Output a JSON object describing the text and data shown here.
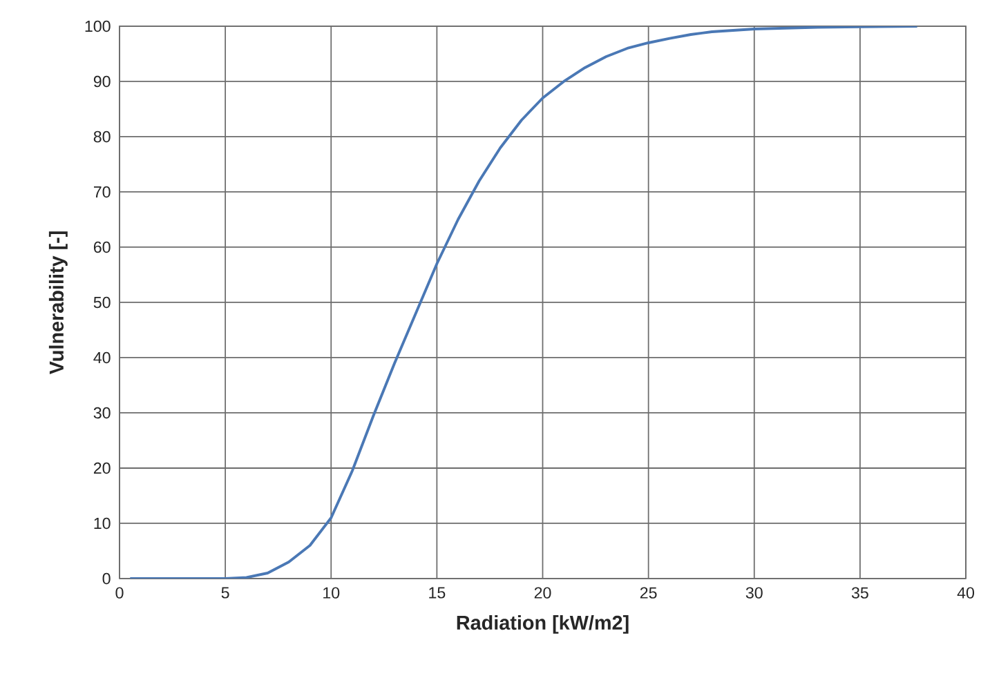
{
  "chart_data": {
    "type": "line",
    "xlabel": "Radiation [kW/m2]",
    "ylabel": "Vulnerability [-]",
    "x": [
      0.5,
      2,
      4,
      5,
      6,
      7,
      8,
      9,
      10,
      11,
      12,
      13,
      14,
      15,
      16,
      17,
      18,
      19,
      20,
      21,
      22,
      23,
      24,
      25,
      26,
      27,
      28,
      30,
      33,
      35,
      37.7
    ],
    "series": [
      {
        "color": "#4a78b5",
        "values": [
          0,
          0,
          0,
          0,
          0.2,
          1,
          3,
          6,
          11,
          19.5,
          29.5,
          39,
          48,
          57,
          65,
          72,
          78,
          83,
          87,
          90,
          92.5,
          94.5,
          96,
          97,
          97.8,
          98.5,
          99,
          99.5,
          99.8,
          99.9,
          100
        ]
      }
    ],
    "xlim": [
      0,
      40
    ],
    "ylim": [
      0,
      100
    ],
    "xticks": [
      0,
      5,
      10,
      15,
      20,
      25,
      30,
      35,
      40
    ],
    "yticks": [
      0,
      10,
      20,
      30,
      40,
      50,
      60,
      70,
      80,
      90,
      100
    ],
    "grid": true,
    "marker": "none",
    "line_style": "solid"
  }
}
